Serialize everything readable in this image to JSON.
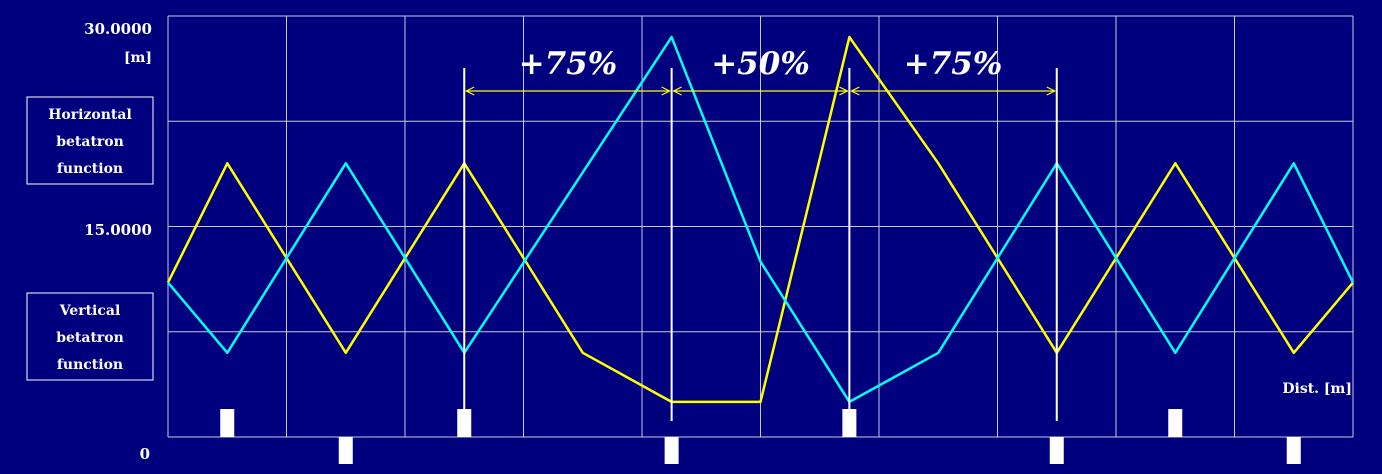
{
  "chart_data": {
    "type": "line",
    "y_axis": {
      "ticks": [
        "30.0000",
        "15.0000",
        "0"
      ],
      "unit": "[m]",
      "range": [
        0,
        30
      ]
    },
    "x_axis": {
      "label": "Dist. [m]",
      "range": [
        0,
        100
      ]
    },
    "grid": true,
    "legend": {
      "horizontal": [
        "Horizontal",
        "betatron",
        "function"
      ],
      "vertical": [
        "Vertical",
        "betatron",
        "function"
      ]
    },
    "series": [
      {
        "color": "#ffff00",
        "x": [
          0,
          5,
          15,
          25,
          35,
          42.5,
          50,
          57.5,
          65,
          75,
          85,
          95,
          100
        ],
        "y": [
          11,
          19.5,
          6,
          19.5,
          6,
          2.5,
          2.5,
          28.5,
          19.5,
          6,
          19.5,
          6,
          11
        ]
      },
      {
        "color": "#00ffff",
        "x": [
          0,
          5,
          15,
          25,
          42.5,
          50,
          57.5,
          65,
          75,
          85,
          95,
          100
        ],
        "y": [
          11,
          6,
          19.5,
          6,
          28.5,
          12.5,
          2.5,
          6,
          19.5,
          6,
          19.5,
          11
        ]
      }
    ],
    "annotations": [
      {
        "text": "+75%",
        "from": 25,
        "to": 42.5
      },
      {
        "text": "+50%",
        "from": 42.5,
        "to": 57.5
      },
      {
        "text": "+75%",
        "from": 57.5,
        "to": 75
      }
    ],
    "marker_lines_x": [
      25,
      42.5,
      57.5,
      75
    ],
    "magnets": {
      "top": [
        5,
        25,
        57.5,
        85
      ],
      "bottom": [
        15,
        42.5,
        75,
        95
      ]
    }
  }
}
